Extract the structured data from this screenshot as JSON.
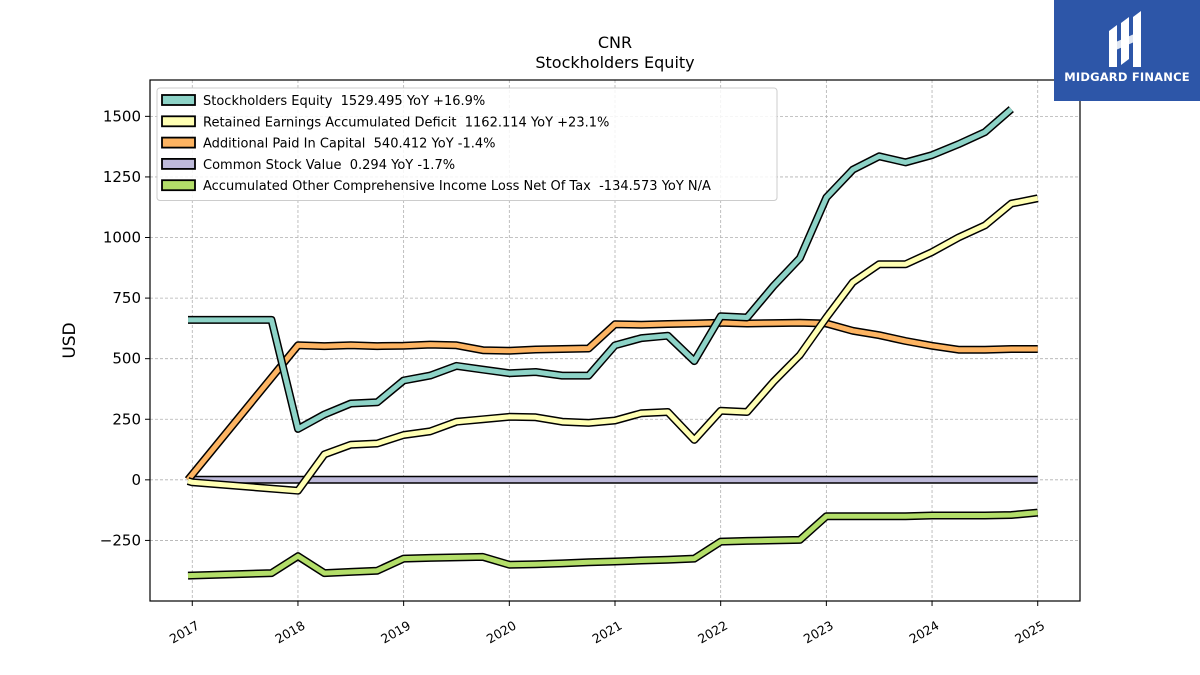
{
  "title": "CNR",
  "subtitle": "Stockholders  Equity",
  "brand": {
    "name": "MIDGARD FINANCE",
    "logo_icon": "midgard-logo-icon",
    "color": "#2d56a8"
  },
  "chart_data": {
    "type": "line",
    "ylabel": "USD",
    "xlabel": "",
    "ylim": [
      -500,
      1650
    ],
    "yticks": [
      -250,
      0,
      250,
      500,
      750,
      1000,
      1250,
      1500
    ],
    "xlim": [
      2016.6,
      2025.4
    ],
    "xticks": [
      "2017",
      "2018",
      "2019",
      "2020",
      "2021",
      "2022",
      "2023",
      "2024",
      "2025"
    ],
    "grid": true,
    "legend_position": "top-left",
    "series": [
      {
        "name": "Stockholders Equity  1529.495 YoY +16.9%",
        "color": "#8dd3c7",
        "points": [
          [
            2016.96,
            660
          ],
          [
            2017.75,
            660
          ],
          [
            2018.0,
            210
          ],
          [
            2018.25,
            270
          ],
          [
            2018.5,
            315
          ],
          [
            2018.75,
            320
          ],
          [
            2019.0,
            410
          ],
          [
            2019.25,
            430
          ],
          [
            2019.5,
            470
          ],
          [
            2019.75,
            455
          ],
          [
            2020.0,
            440
          ],
          [
            2020.25,
            445
          ],
          [
            2020.5,
            430
          ],
          [
            2020.75,
            430
          ],
          [
            2021.0,
            555
          ],
          [
            2021.25,
            585
          ],
          [
            2021.5,
            595
          ],
          [
            2021.75,
            490
          ],
          [
            2022.0,
            675
          ],
          [
            2022.25,
            670
          ],
          [
            2022.5,
            800
          ],
          [
            2022.75,
            915
          ],
          [
            2023.0,
            1165
          ],
          [
            2023.25,
            1280
          ],
          [
            2023.5,
            1335
          ],
          [
            2023.75,
            1310
          ],
          [
            2024.0,
            1340
          ],
          [
            2024.25,
            1385
          ],
          [
            2024.5,
            1435
          ],
          [
            2024.75,
            1530
          ]
        ]
      },
      {
        "name": "Retained Earnings Accumulated Deficit  1162.114 YoY +23.1%",
        "color": "#ffffb3",
        "points": [
          [
            2016.96,
            -5
          ],
          [
            2017.0,
            -10
          ],
          [
            2018.0,
            -45
          ],
          [
            2018.25,
            105
          ],
          [
            2018.5,
            145
          ],
          [
            2018.75,
            150
          ],
          [
            2019.0,
            185
          ],
          [
            2019.25,
            200
          ],
          [
            2019.5,
            240
          ],
          [
            2019.75,
            250
          ],
          [
            2020.0,
            260
          ],
          [
            2020.25,
            258
          ],
          [
            2020.5,
            240
          ],
          [
            2020.75,
            235
          ],
          [
            2021.0,
            245
          ],
          [
            2021.25,
            275
          ],
          [
            2021.5,
            280
          ],
          [
            2021.75,
            165
          ],
          [
            2022.0,
            285
          ],
          [
            2022.25,
            280
          ],
          [
            2022.5,
            405
          ],
          [
            2022.75,
            515
          ],
          [
            2023.0,
            670
          ],
          [
            2023.25,
            815
          ],
          [
            2023.5,
            890
          ],
          [
            2023.75,
            890
          ],
          [
            2024.0,
            940
          ],
          [
            2024.25,
            1000
          ],
          [
            2024.5,
            1050
          ],
          [
            2024.75,
            1140
          ],
          [
            2025.0,
            1162
          ]
        ]
      },
      {
        "name": "Additional Paid In Capital  540.412 YoY -1.4%",
        "color": "#fdb462",
        "points": [
          [
            2016.96,
            0
          ],
          [
            2018.0,
            555
          ],
          [
            2018.25,
            552
          ],
          [
            2018.5,
            555
          ],
          [
            2018.75,
            552
          ],
          [
            2019.0,
            553
          ],
          [
            2019.25,
            558
          ],
          [
            2019.5,
            555
          ],
          [
            2019.75,
            535
          ],
          [
            2020.0,
            533
          ],
          [
            2020.25,
            538
          ],
          [
            2020.5,
            540
          ],
          [
            2020.75,
            542
          ],
          [
            2021.0,
            642
          ],
          [
            2021.25,
            640
          ],
          [
            2021.5,
            643
          ],
          [
            2021.75,
            645
          ],
          [
            2022.0,
            648
          ],
          [
            2022.25,
            645
          ],
          [
            2022.5,
            647
          ],
          [
            2022.75,
            648
          ],
          [
            2023.0,
            645
          ],
          [
            2023.25,
            615
          ],
          [
            2023.5,
            597
          ],
          [
            2023.75,
            573
          ],
          [
            2024.0,
            553
          ],
          [
            2024.25,
            537
          ],
          [
            2024.5,
            537
          ],
          [
            2024.75,
            540
          ],
          [
            2025.0,
            540
          ]
        ]
      },
      {
        "name": "Common Stock Value  0.294 YoY -1.7%",
        "color": "#bebada",
        "points": [
          [
            2016.96,
            0.3
          ],
          [
            2025.0,
            0.294
          ]
        ]
      },
      {
        "name": "Accumulated Other Comprehensive Income Loss Net Of Tax  -134.573 YoY N/A",
        "color": "#b3de69",
        "points": [
          [
            2016.96,
            -395
          ],
          [
            2017.75,
            -385
          ],
          [
            2018.0,
            -315
          ],
          [
            2018.25,
            -385
          ],
          [
            2018.5,
            -380
          ],
          [
            2018.75,
            -375
          ],
          [
            2019.0,
            -325
          ],
          [
            2019.25,
            -322
          ],
          [
            2019.5,
            -320
          ],
          [
            2019.75,
            -318
          ],
          [
            2020.0,
            -350
          ],
          [
            2020.25,
            -348
          ],
          [
            2020.5,
            -345
          ],
          [
            2020.75,
            -340
          ],
          [
            2021.0,
            -337
          ],
          [
            2021.25,
            -333
          ],
          [
            2021.5,
            -330
          ],
          [
            2021.75,
            -325
          ],
          [
            2022.0,
            -255
          ],
          [
            2022.25,
            -252
          ],
          [
            2022.5,
            -250
          ],
          [
            2022.75,
            -248
          ],
          [
            2023.0,
            -150
          ],
          [
            2023.25,
            -150
          ],
          [
            2023.5,
            -150
          ],
          [
            2023.75,
            -150
          ],
          [
            2024.0,
            -147
          ],
          [
            2024.25,
            -147
          ],
          [
            2024.5,
            -147
          ],
          [
            2024.75,
            -145
          ],
          [
            2025.0,
            -135
          ]
        ]
      }
    ]
  }
}
